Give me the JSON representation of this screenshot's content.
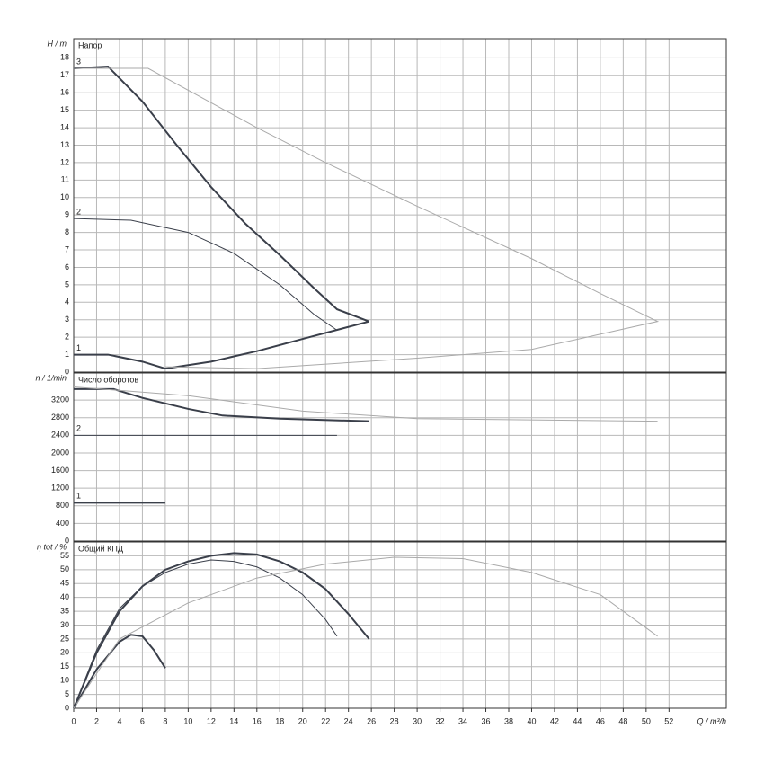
{
  "chart_data": [
    {
      "type": "line",
      "title": "Напор",
      "ylabel": "H / m",
      "ylim": [
        0,
        19.1
      ],
      "yticks": [
        0,
        1,
        2,
        3,
        4,
        5,
        6,
        7,
        8,
        9,
        10,
        11,
        12,
        13,
        14,
        15,
        16,
        17,
        18
      ],
      "grid": true,
      "series": [
        {
          "name": "3",
          "color": "#3a3f4a",
          "width": 2,
          "x": [
            0,
            3,
            6,
            9,
            12,
            15,
            18,
            21,
            23,
            25.8
          ],
          "values": [
            17.4,
            17.5,
            15.5,
            13,
            10.6,
            8.5,
            6.7,
            4.8,
            3.6,
            2.9
          ]
        },
        {
          "name": "2",
          "color": "#3a3f4a",
          "width": 1,
          "x": [
            0,
            5,
            10,
            14,
            18,
            21,
            23
          ],
          "values": [
            8.8,
            8.7,
            8,
            6.8,
            5,
            3.3,
            2.4
          ]
        },
        {
          "name": "1",
          "color": "#3a3f4a",
          "width": 2,
          "x": [
            0,
            3,
            6,
            8,
            12,
            16,
            20,
            25.8
          ],
          "values": [
            1,
            1,
            0.6,
            0.2,
            0.6,
            1.2,
            1.9,
            2.9
          ]
        },
        {
          "color": "#aaaaaa",
          "width": 1,
          "x": [
            0,
            6.5,
            16,
            22,
            30,
            40,
            46,
            51,
            40,
            30,
            16,
            8
          ],
          "values": [
            17.4,
            17.4,
            14,
            12,
            9.5,
            6.5,
            4.5,
            2.9,
            1.3,
            0.8,
            0.2,
            0.3
          ]
        }
      ]
    },
    {
      "type": "line",
      "title": "Число оборотов",
      "ylabel": "n / 1/min",
      "ylim": [
        0,
        3815
      ],
      "yticks": [
        0,
        400,
        800,
        1200,
        1600,
        2000,
        2400,
        2800,
        3200
      ],
      "grid": true,
      "series": [
        {
          "color": "#3a3f4a",
          "width": 2,
          "x": [
            0,
            3.5,
            6,
            10,
            13,
            18,
            25.8
          ],
          "values": [
            3450,
            3450,
            3250,
            3000,
            2850,
            2780,
            2720
          ]
        },
        {
          "name": "2",
          "color": "#3a3f4a",
          "width": 1,
          "x": [
            0,
            23
          ],
          "values": [
            2400,
            2400
          ]
        },
        {
          "name": "1",
          "color": "#3a3f4a",
          "width": 2,
          "x": [
            0,
            8
          ],
          "values": [
            870,
            870
          ]
        },
        {
          "color": "#aaaaaa",
          "width": 1,
          "x": [
            0,
            10,
            20,
            30,
            51
          ],
          "values": [
            3500,
            3300,
            2950,
            2780,
            2720
          ]
        }
      ]
    },
    {
      "type": "line",
      "title": "Общий КПД",
      "ylabel": "η tot / %",
      "xlabel": "Q / m³/h",
      "ylim": [
        0,
        60
      ],
      "yticks": [
        0,
        5,
        10,
        15,
        20,
        25,
        30,
        35,
        40,
        45,
        50,
        55
      ],
      "grid": true,
      "xlim": [
        0,
        57
      ],
      "xticks": [
        0,
        2,
        4,
        6,
        8,
        10,
        12,
        14,
        16,
        18,
        20,
        22,
        24,
        26,
        28,
        30,
        32,
        34,
        36,
        38,
        40,
        42,
        44,
        46,
        48,
        50,
        52
      ],
      "series": [
        {
          "color": "#3a3f4a",
          "width": 2,
          "x": [
            0,
            2,
            4,
            6,
            8,
            10,
            12,
            14,
            16,
            18,
            20,
            22,
            24,
            25.8
          ],
          "values": [
            0,
            20,
            35,
            44,
            50,
            53,
            55,
            56,
            55.5,
            53,
            49,
            43,
            34,
            25
          ]
        },
        {
          "color": "#3a3f4a",
          "width": 1,
          "x": [
            0,
            2,
            4,
            6,
            8,
            10,
            12,
            14,
            16,
            18,
            20,
            22,
            23
          ],
          "values": [
            0,
            21,
            36,
            44,
            49,
            52,
            53.5,
            53,
            51,
            47,
            41,
            32,
            26
          ]
        },
        {
          "color": "#3a3f4a",
          "width": 2,
          "x": [
            0,
            2,
            4,
            5,
            6,
            7,
            8
          ],
          "values": [
            0,
            14,
            24,
            26.5,
            26,
            21,
            14.5
          ]
        },
        {
          "color": "#aaaaaa",
          "width": 1,
          "x": [
            0,
            4,
            10,
            16,
            22,
            28,
            34,
            40,
            46,
            51
          ],
          "values": [
            0,
            25,
            38,
            47,
            52,
            54.5,
            54,
            49,
            41,
            26
          ]
        }
      ]
    }
  ]
}
